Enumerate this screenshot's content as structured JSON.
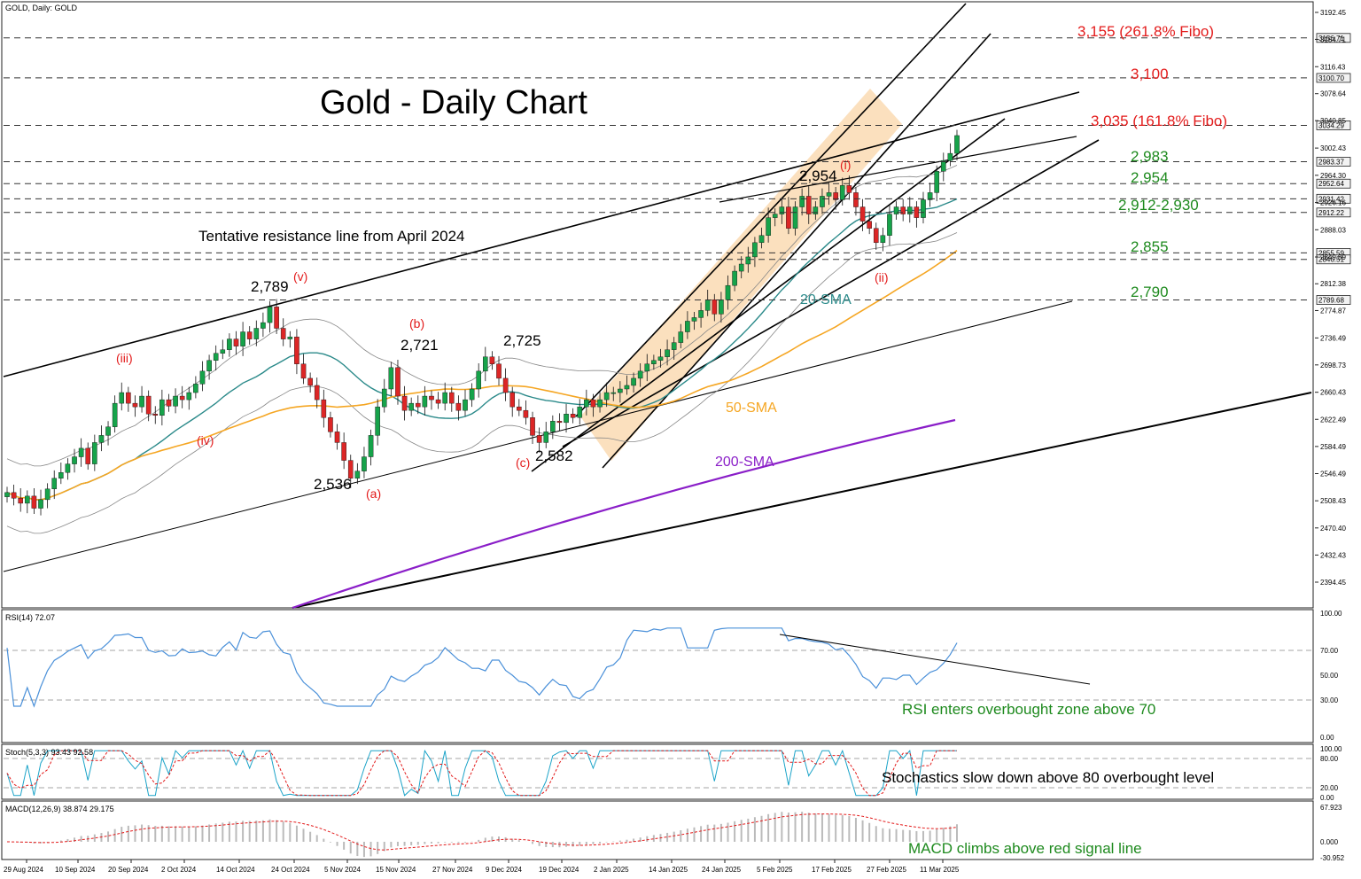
{
  "header": {
    "symbol_label": "GOLD, Daily:  GOLD"
  },
  "chart_data": {
    "type": "candlestick",
    "title": "Gold - Daily Chart",
    "ylim": [
      2360,
      3210
    ],
    "y_ticks": [
      "3192.45",
      "3154.71",
      "3116.43",
      "3078.64",
      "3040.85",
      "3002.43",
      "2964.30",
      "2926.16",
      "2888.03",
      "2849.89",
      "2812.38",
      "2774.87",
      "2736.49",
      "2698.73",
      "2660.43",
      "2622.49",
      "2584.49",
      "2546.49",
      "2508.43",
      "2470.40",
      "2432.43",
      "2394.45"
    ],
    "price_boxes": [
      "3156.71",
      "3100.70",
      "3034.29",
      "2983.37",
      "2952.64",
      "2931.42",
      "2912.22",
      "2855.59",
      "2846.51",
      "2789.68"
    ],
    "x_ticks": [
      "29 Aug 2024",
      "10 Sep 2024",
      "20 Sep 2024",
      "2 Oct 2024",
      "14 Oct 2024",
      "24 Oct 2024",
      "5 Nov 2024",
      "15 Nov 2024",
      "27 Nov 2024",
      "9 Dec 2024",
      "19 Dec 2024",
      "2 Jan 2025",
      "14 Jan 2025",
      "24 Jan 2025",
      "5 Feb 2025",
      "17 Feb 2025",
      "27 Feb 2025",
      "11 Mar 2025"
    ],
    "closes": [
      2520,
      2512,
      2505,
      2515,
      2498,
      2510,
      2525,
      2540,
      2548,
      2560,
      2570,
      2582,
      2560,
      2590,
      2600,
      2612,
      2645,
      2660,
      2645,
      2640,
      2655,
      2630,
      2628,
      2650,
      2641,
      2655,
      2650,
      2660,
      2672,
      2690,
      2705,
      2715,
      2720,
      2735,
      2725,
      2745,
      2735,
      2750,
      2758,
      2780,
      2750,
      2735,
      2738,
      2700,
      2680,
      2670,
      2650,
      2625,
      2605,
      2590,
      2565,
      2540,
      2550,
      2570,
      2600,
      2640,
      2665,
      2695,
      2655,
      2635,
      2645,
      2640,
      2655,
      2650,
      2645,
      2660,
      2645,
      2635,
      2650,
      2665,
      2690,
      2710,
      2700,
      2680,
      2660,
      2640,
      2635,
      2625,
      2600,
      2590,
      2605,
      2620,
      2618,
      2630,
      2625,
      2640,
      2650,
      2640,
      2650,
      2660,
      2660,
      2665,
      2670,
      2680,
      2690,
      2700,
      2705,
      2710,
      2720,
      2730,
      2745,
      2760,
      2765,
      2775,
      2790,
      2770,
      2790,
      2810,
      2830,
      2840,
      2850,
      2870,
      2880,
      2905,
      2910,
      2920,
      2890,
      2920,
      2935,
      2910,
      2920,
      2935,
      2940,
      2930,
      2950,
      2940,
      2920,
      2900,
      2890,
      2870,
      2880,
      2910,
      2920,
      2910,
      2920,
      2905,
      2930,
      2940,
      2970,
      2985,
      2995,
      3020
    ],
    "levels": [
      {
        "label": "3,155 (261.8% Fibo)",
        "value": 3155,
        "color": "#e31b1b"
      },
      {
        "label": "3,100",
        "value": 3100,
        "color": "#e31b1b"
      },
      {
        "label": "3,035 (161.8% Fibo)",
        "value": 3035,
        "color": "#e31b1b"
      },
      {
        "label": "2,983",
        "value": 2983,
        "color": "#1e8a1e"
      },
      {
        "label": "2,954",
        "value": 2954,
        "color": "#1e8a1e"
      },
      {
        "label": "2,912-2,930",
        "value": 2921,
        "color": "#1e8a1e"
      },
      {
        "label": "2,855",
        "value": 2855,
        "color": "#1e8a1e"
      },
      {
        "label": "2,790",
        "value": 2790,
        "color": "#1e8a1e"
      }
    ],
    "annotations": {
      "resistance_note": "Tentative resistance line from April 2024",
      "peaks": [
        "2,789",
        "2,721",
        "2,725",
        "2,954"
      ],
      "troughs": [
        "2,536",
        "2,582"
      ],
      "waves": [
        "(iii)",
        "(iv)",
        "(v)",
        "(a)",
        "(b)",
        "(c)",
        "(i)",
        "(ii)"
      ],
      "sma20": "20-SMA",
      "sma50": "50-SMA",
      "sma200": "200-SMA"
    },
    "colors": {
      "bull": "#16a34a",
      "bear": "#dc2626",
      "sma20": "#2b8a8a",
      "sma50": "#f5a623",
      "sma200": "#8a1ec8",
      "channel_fill": "#f9d6a8",
      "red_text": "#e31b1b",
      "green_text": "#1e8a1e",
      "rsi": "#4a90d9"
    }
  },
  "rsi_panel": {
    "label": "RSI(14) 72.07",
    "value": 72.07,
    "ticks": [
      "100.00",
      "70.00",
      "50.00",
      "30.00",
      "0.00"
    ],
    "note": "RSI enters overbought zone above 70"
  },
  "stoch_panel": {
    "label": "Stoch(5,3,3) 93.43 92.58",
    "ticks": [
      "100.00",
      "80.00",
      "20.00",
      "0.00"
    ],
    "note": "Stochastics slow down above 80 overbought level"
  },
  "macd_panel": {
    "label": "MACD(12,26,9) 38.874 29.175",
    "ticks": [
      "67.923",
      "0.000",
      "-30.952"
    ],
    "note": "MACD climbs above red signal line"
  }
}
